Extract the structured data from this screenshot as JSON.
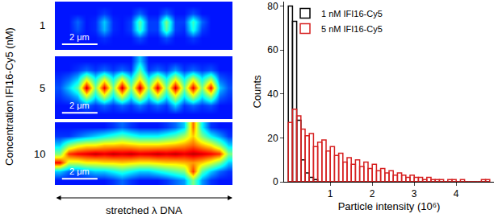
{
  "figure": {
    "y_label": "Concentration IFI16-Cy5 (nM)",
    "x_label": "stretched λ DNA"
  },
  "chart_data": [
    {
      "type": "heatmap",
      "label": "1",
      "scale_bar": {
        "label": "2 μm",
        "length": 2
      },
      "cell_size": 0.5,
      "zlim": [
        0,
        1
      ],
      "z": [
        [
          0.12,
          0.12,
          0.12,
          0.12,
          0.12,
          0.12,
          0.12,
          0.12,
          0.12,
          0.12,
          0.12,
          0.12,
          0.12,
          0.12,
          0.12,
          0.12,
          0.12,
          0.12,
          0.12,
          0.12
        ],
        [
          0.12,
          0.12,
          0.12,
          0.12,
          0.12,
          0.16,
          0.12,
          0.12,
          0.12,
          0.2,
          0.12,
          0.12,
          0.2,
          0.12,
          0.12,
          0.18,
          0.12,
          0.12,
          0.12,
          0.12
        ],
        [
          0.12,
          0.12,
          0.2,
          0.12,
          0.14,
          0.3,
          0.14,
          0.12,
          0.16,
          0.45,
          0.16,
          0.16,
          0.5,
          0.16,
          0.16,
          0.42,
          0.2,
          0.12,
          0.12,
          0.12
        ],
        [
          0.12,
          0.12,
          0.18,
          0.12,
          0.14,
          0.28,
          0.14,
          0.12,
          0.16,
          0.42,
          0.16,
          0.16,
          0.45,
          0.16,
          0.14,
          0.38,
          0.16,
          0.12,
          0.12,
          0.12
        ],
        [
          0.12,
          0.12,
          0.12,
          0.12,
          0.12,
          0.15,
          0.12,
          0.12,
          0.12,
          0.18,
          0.12,
          0.12,
          0.18,
          0.12,
          0.12,
          0.16,
          0.12,
          0.12,
          0.12,
          0.12
        ],
        [
          0.12,
          0.12,
          0.12,
          0.12,
          0.12,
          0.12,
          0.12,
          0.12,
          0.12,
          0.12,
          0.12,
          0.12,
          0.12,
          0.12,
          0.12,
          0.12,
          0.12,
          0.12,
          0.12,
          0.12
        ]
      ]
    },
    {
      "type": "heatmap",
      "label": "5",
      "scale_bar": {
        "label": "2 μm",
        "length": 2
      },
      "cell_size": 0.5,
      "zlim": [
        0,
        1
      ],
      "z": [
        [
          0.12,
          0.12,
          0.12,
          0.12,
          0.12,
          0.12,
          0.12,
          0.12,
          0.12,
          0.3,
          0.12,
          0.12,
          0.12,
          0.12,
          0.12,
          0.12,
          0.12,
          0.12,
          0.12,
          0.12
        ],
        [
          0.12,
          0.12,
          0.15,
          0.2,
          0.15,
          0.2,
          0.15,
          0.2,
          0.15,
          0.45,
          0.15,
          0.2,
          0.15,
          0.25,
          0.15,
          0.2,
          0.15,
          0.18,
          0.12,
          0.12
        ],
        [
          0.15,
          0.2,
          0.3,
          0.6,
          0.35,
          0.6,
          0.35,
          0.62,
          0.35,
          0.65,
          0.35,
          0.6,
          0.35,
          0.62,
          0.35,
          0.6,
          0.35,
          0.55,
          0.2,
          0.15
        ],
        [
          0.18,
          0.3,
          0.45,
          0.95,
          0.5,
          0.92,
          0.5,
          0.95,
          0.5,
          0.95,
          0.5,
          0.93,
          0.5,
          0.95,
          0.5,
          0.92,
          0.5,
          0.9,
          0.3,
          0.18
        ],
        [
          0.15,
          0.2,
          0.28,
          0.58,
          0.33,
          0.58,
          0.33,
          0.6,
          0.33,
          0.62,
          0.33,
          0.58,
          0.33,
          0.6,
          0.33,
          0.58,
          0.33,
          0.52,
          0.2,
          0.15
        ],
        [
          0.12,
          0.12,
          0.15,
          0.2,
          0.15,
          0.2,
          0.15,
          0.2,
          0.15,
          0.22,
          0.15,
          0.2,
          0.15,
          0.3,
          0.15,
          0.2,
          0.15,
          0.18,
          0.12,
          0.12
        ],
        [
          0.12,
          0.12,
          0.12,
          0.12,
          0.12,
          0.12,
          0.12,
          0.12,
          0.12,
          0.12,
          0.12,
          0.12,
          0.12,
          0.12,
          0.12,
          0.12,
          0.12,
          0.12,
          0.12,
          0.12
        ]
      ]
    },
    {
      "type": "heatmap",
      "label": "10",
      "scale_bar": {
        "label": "2 μm",
        "length": 2
      },
      "cell_size": 0.5,
      "zlim": [
        0,
        1
      ],
      "z": [
        [
          0.12,
          0.12,
          0.12,
          0.12,
          0.12,
          0.12,
          0.15,
          0.2,
          0.15,
          0.12,
          0.12,
          0.12,
          0.15,
          0.2,
          0.3,
          0.8,
          0.35,
          0.15,
          0.12,
          0.12
        ],
        [
          0.15,
          0.15,
          0.2,
          0.25,
          0.3,
          0.35,
          0.4,
          0.45,
          0.4,
          0.35,
          0.35,
          0.35,
          0.4,
          0.45,
          0.55,
          0.7,
          0.5,
          0.35,
          0.25,
          0.15
        ],
        [
          0.3,
          0.5,
          0.6,
          0.65,
          0.65,
          0.7,
          0.7,
          0.72,
          0.7,
          0.68,
          0.68,
          0.68,
          0.7,
          0.72,
          0.75,
          0.8,
          0.72,
          0.65,
          0.5,
          0.3
        ],
        [
          0.5,
          0.85,
          0.9,
          0.92,
          0.95,
          0.92,
          0.95,
          0.93,
          0.95,
          0.92,
          0.93,
          0.95,
          0.93,
          0.95,
          0.92,
          0.95,
          0.93,
          0.9,
          0.85,
          0.5
        ],
        [
          0.9,
          0.6,
          0.6,
          0.65,
          0.65,
          0.68,
          0.68,
          0.7,
          0.68,
          0.66,
          0.66,
          0.68,
          0.7,
          0.7,
          0.72,
          0.75,
          0.7,
          0.62,
          0.5,
          0.3
        ],
        [
          0.3,
          0.2,
          0.2,
          0.25,
          0.3,
          0.3,
          0.35,
          0.4,
          0.35,
          0.3,
          0.3,
          0.35,
          0.4,
          0.45,
          0.5,
          0.85,
          0.45,
          0.3,
          0.2,
          0.15
        ],
        [
          0.12,
          0.12,
          0.12,
          0.12,
          0.12,
          0.12,
          0.15,
          0.2,
          0.15,
          0.12,
          0.12,
          0.12,
          0.15,
          0.2,
          0.25,
          0.5,
          0.25,
          0.15,
          0.12,
          0.12
        ]
      ]
    },
    {
      "type": "histogram",
      "x_label": "Particle intensity (10⁶)",
      "y_label": "Counts",
      "legend": "upper left",
      "xlim": [
        -0.1,
        4.9
      ],
      "xticks": [
        1,
        2,
        3,
        4
      ],
      "ylim": [
        0,
        82
      ],
      "yticks": [
        0,
        20,
        40,
        60,
        80
      ],
      "bins": [
        0,
        0.1,
        0.2,
        0.3,
        0.4,
        0.5,
        0.6,
        0.7,
        0.8,
        0.9,
        1,
        1.1,
        1.2,
        1.3,
        1.4,
        1.5,
        1.6,
        1.7,
        1.8,
        1.9,
        2,
        2.1,
        2.2,
        2.3,
        2.4,
        2.5,
        2.6,
        2.7,
        2.8,
        2.9,
        3,
        3.1,
        3.2,
        3.3,
        3.4,
        3.5,
        3.6,
        3.7,
        3.8,
        3.9,
        4,
        4.1,
        4.2,
        4.3,
        4.4,
        4.5,
        4.6,
        4.7,
        4.8
      ],
      "series": [
        {
          "name": "1 nM IFI16-Cy5",
          "color": "#000000",
          "values": [
            80,
            73,
            28,
            10,
            4,
            2,
            1,
            0,
            0,
            0,
            0,
            0,
            0,
            0,
            0,
            0,
            0,
            0,
            0,
            0,
            0,
            0,
            0,
            0,
            0,
            0,
            0,
            0,
            0,
            0,
            0,
            0,
            0,
            0,
            0,
            0,
            0,
            0,
            0,
            0,
            0,
            0,
            0,
            0,
            0,
            0,
            0,
            0
          ]
        },
        {
          "name": "5 nM IFI16-Cy5",
          "color": "#d62020",
          "values": [
            27,
            33,
            30,
            24,
            21,
            22,
            16,
            18,
            19,
            14,
            16,
            12,
            13,
            9,
            11,
            8,
            10,
            7,
            9,
            6,
            8,
            5,
            6,
            4,
            5,
            3,
            4,
            3,
            2,
            3,
            2,
            2,
            1,
            2,
            1,
            1,
            1,
            0,
            1,
            1,
            0,
            1,
            0,
            0,
            0,
            0,
            1,
            1
          ]
        }
      ]
    }
  ]
}
